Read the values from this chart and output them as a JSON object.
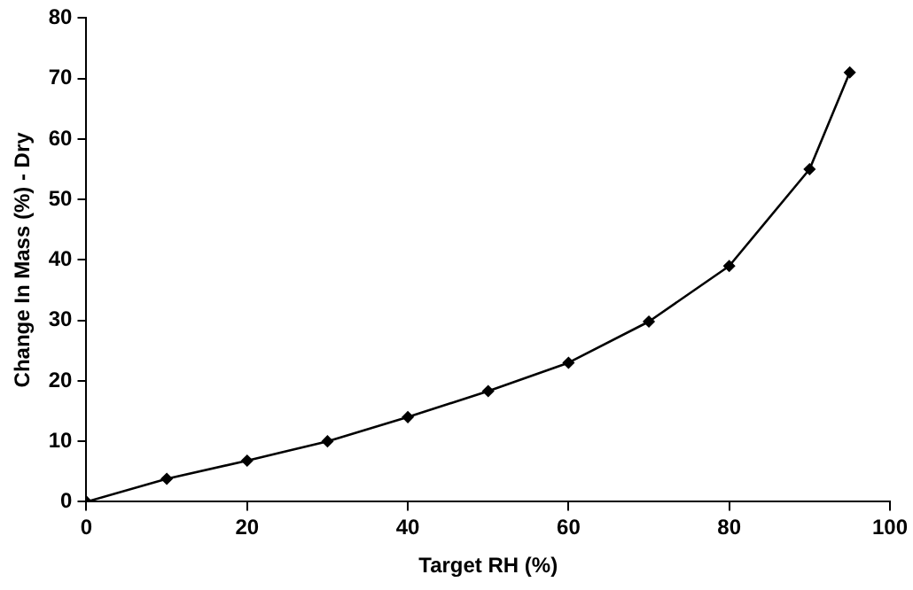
{
  "chart_data": {
    "type": "line",
    "xlabel": "Target RH (%)",
    "ylabel": "Change In Mass (%) - Dry",
    "x": [
      0,
      10,
      20,
      30,
      40,
      50,
      60,
      70,
      80,
      90,
      95
    ],
    "series": [
      {
        "color": "#000000",
        "values": [
          0,
          3.8,
          6.8,
          10,
          14,
          18.3,
          23,
          29.8,
          39,
          55,
          71
        ]
      }
    ],
    "xlim": [
      0,
      100
    ],
    "xticks": [
      0,
      20,
      40,
      60,
      80,
      100
    ],
    "ylim": [
      0,
      80
    ],
    "yticks": [
      0,
      10,
      20,
      30,
      40,
      50,
      60,
      70,
      80
    ],
    "grid": false,
    "legend": false,
    "marker": "diamond",
    "line_style": "solid"
  }
}
